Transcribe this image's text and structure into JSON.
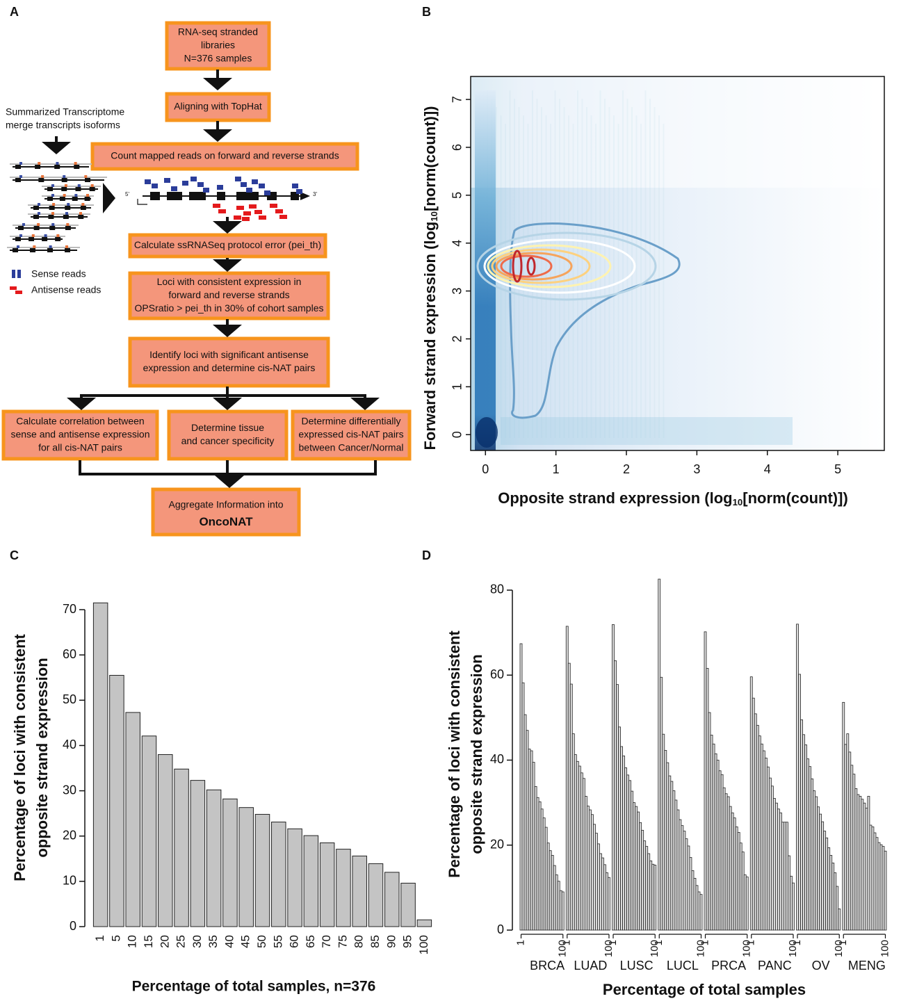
{
  "panel_labels": [
    "A",
    "B",
    "C",
    "D"
  ],
  "flowchart": {
    "nodes": [
      {
        "lines": [
          "RNA-seq stranded",
          "libraries",
          "N=376 samples"
        ]
      },
      {
        "lines": [
          "Aligning with TopHat"
        ]
      },
      {
        "lines": [
          "Count mapped reads on forward and reverse strands"
        ]
      },
      {
        "lines": [
          "Calculate ssRNASeq protocol error (pei_th)"
        ]
      },
      {
        "lines": [
          "Loci with consistent expression in",
          "forward and reverse strands",
          "OPSratio > pei_th in 30% of cohort samples"
        ]
      },
      {
        "lines": [
          "Identify loci with significant antisense",
          "expression and determine cis-NAT pairs"
        ]
      },
      {
        "lines": [
          "Calculate correlation between",
          "sense and antisense expression",
          "for all cis-NAT pairs"
        ]
      },
      {
        "lines": [
          "Determine tissue",
          "and cancer specificity"
        ]
      },
      {
        "lines": [
          "Determine differentially",
          "expressed cis-NAT pairs",
          "between Cancer/Normal"
        ]
      },
      {
        "lines": [
          "Aggregate Information into",
          "OncoNAT"
        ]
      }
    ],
    "side_note": [
      "Summarized Transcriptome",
      "merge transcripts isoforms"
    ],
    "legend": [
      "Sense reads",
      "Antisense reads"
    ],
    "strand_marks": [
      "5'",
      "3'"
    ]
  },
  "chart_data": [
    {
      "type": "density",
      "xlabel": [
        "Opposite strand expression (log",
        "10",
        "[norm(count)])"
      ],
      "ylabel": [
        "Forward strand  expression (log",
        "10",
        "[norm(count)])"
      ],
      "xlim": [
        -0.21,
        5.66
      ],
      "xticks": [
        0,
        1,
        2,
        3,
        4,
        5
      ],
      "ylim": [
        -0.33,
        7.48
      ],
      "yticks": [
        0,
        1,
        2,
        3,
        4,
        5,
        6,
        7
      ]
    },
    {
      "type": "bar",
      "ylabel": [
        "Percentage of loci with consistent",
        "opposite strand expression"
      ],
      "xlabel": "Percentage of total samples, n=376",
      "categories": [
        "1",
        "5",
        "10",
        "15",
        "20",
        "25",
        "30",
        "35",
        "40",
        "45",
        "50",
        "55",
        "60",
        "65",
        "70",
        "75",
        "80",
        "85",
        "90",
        "95",
        "100"
      ],
      "values": [
        71.5,
        55.5,
        47.3,
        42.1,
        38.0,
        34.8,
        32.3,
        30.2,
        28.2,
        26.3,
        24.8,
        23.1,
        21.6,
        20.1,
        18.5,
        17.1,
        15.6,
        13.9,
        12.0,
        9.6,
        1.5
      ],
      "color": "#c4c4c4",
      "ylim": [
        0,
        72
      ],
      "yticks": [
        0,
        10,
        20,
        30,
        40,
        50,
        60,
        70
      ]
    },
    {
      "type": "grouped_bar",
      "ylabel": [
        "Percentage of loci with consistent",
        "opposite strand expression"
      ],
      "xlabel": "Percentage of total  samples",
      "color": "#dcdcdc",
      "ylim": [
        0,
        84
      ],
      "yticks": [
        0,
        20,
        40,
        60,
        80
      ],
      "groups": [
        {
          "name": "BRCA",
          "categories": [
            "1",
            null,
            null,
            null,
            null,
            null,
            null,
            null,
            null,
            null,
            null,
            null,
            null,
            null,
            null,
            null,
            null,
            null,
            null,
            null,
            "100"
          ],
          "values": [
            67.4,
            58.2,
            50.7,
            47.0,
            42.6,
            42.2,
            39.5,
            33.8,
            31.2,
            30.2,
            28.5,
            26.4,
            24.2,
            20.5,
            18.7,
            17.6,
            15.2,
            13.0,
            11.5,
            9.3,
            9.0
          ]
        },
        {
          "name": "LUAD",
          "categories": [
            "1",
            null,
            null,
            null,
            null,
            null,
            null,
            null,
            null,
            null,
            null,
            null,
            null,
            null,
            null,
            null,
            null,
            null,
            null,
            null,
            "100"
          ],
          "values": [
            71.5,
            62.8,
            57.9,
            46.2,
            41.3,
            39.7,
            38.6,
            37.0,
            35.7,
            31.5,
            29.2,
            28.3,
            27.2,
            24.9,
            22.8,
            20.3,
            18.0,
            17.0,
            15.4,
            13.5,
            12.4
          ]
        },
        {
          "name": "LUSC",
          "categories": [
            "1",
            null,
            null,
            null,
            null,
            null,
            null,
            null,
            null,
            null,
            null,
            null,
            null,
            null,
            null,
            null,
            null,
            null,
            null,
            null,
            "100"
          ],
          "values": [
            71.9,
            63.4,
            57.8,
            47.8,
            43.2,
            41.0,
            38.2,
            36.5,
            35.2,
            32.7,
            30.0,
            29.1,
            27.8,
            25.3,
            23.5,
            21.0,
            19.7,
            18.0,
            16.3,
            15.5,
            15.3
          ]
        },
        {
          "name": "LUCL",
          "categories": [
            "1",
            null,
            null,
            null,
            null,
            null,
            null,
            null,
            null,
            null,
            null,
            null,
            null,
            null,
            null,
            null,
            null,
            null,
            null,
            null,
            "100"
          ],
          "values": [
            82.6,
            59.5,
            46.1,
            42.3,
            39.4,
            36.3,
            35.0,
            32.8,
            30.6,
            28.3,
            26.0,
            24.6,
            23.3,
            21.5,
            19.8,
            17.1,
            14.0,
            12.2,
            10.5,
            9.0,
            8.4
          ]
        },
        {
          "name": "PRCA",
          "categories": [
            "1",
            null,
            null,
            null,
            null,
            null,
            null,
            null,
            null,
            null,
            null,
            null,
            null,
            null,
            null,
            null,
            null,
            null,
            null,
            null,
            "100"
          ],
          "values": [
            70.2,
            61.6,
            51.2,
            45.9,
            43.8,
            41.5,
            40.0,
            37.5,
            36.6,
            33.5,
            32.1,
            31.4,
            29.1,
            27.6,
            26.4,
            24.3,
            23.0,
            20.5,
            18.4,
            13.0,
            12.5
          ]
        },
        {
          "name": "PANC",
          "categories": [
            "1",
            null,
            null,
            null,
            null,
            null,
            null,
            null,
            null,
            null,
            null,
            null,
            null,
            null,
            null,
            null,
            null,
            null,
            null,
            null,
            "100"
          ],
          "values": [
            59.6,
            54.6,
            50.9,
            48.2,
            45.7,
            43.8,
            42.2,
            40.5,
            38.4,
            35.8,
            33.9,
            31.0,
            29.9,
            28.5,
            27.6,
            25.4,
            25.4,
            25.4,
            17.5,
            12.7,
            11.1
          ]
        },
        {
          "name": "OV",
          "categories": [
            "1",
            null,
            null,
            null,
            null,
            null,
            null,
            null,
            null,
            null,
            null,
            null,
            null,
            null,
            null,
            null,
            null,
            null,
            null,
            null,
            "100"
          ],
          "values": [
            72.0,
            60.2,
            49.5,
            46.0,
            43.6,
            40.3,
            38.5,
            35.6,
            32.8,
            31.4,
            29.0,
            27.3,
            25.5,
            23.3,
            21.7,
            19.4,
            17.6,
            15.8,
            13.5,
            10.3,
            5.0
          ]
        },
        {
          "name": "MENG",
          "categories": [
            "1",
            null,
            null,
            null,
            null,
            null,
            null,
            null,
            null,
            null,
            null,
            null,
            null,
            null,
            null,
            null,
            null,
            null,
            null,
            null,
            "100"
          ],
          "values": [
            53.6,
            43.7,
            46.2,
            41.9,
            38.8,
            36.7,
            33.3,
            31.9,
            31.5,
            30.8,
            29.9,
            28.7,
            31.5,
            24.7,
            24.3,
            22.9,
            21.8,
            20.6,
            20.1,
            19.7,
            18.6
          ]
        }
      ]
    }
  ]
}
